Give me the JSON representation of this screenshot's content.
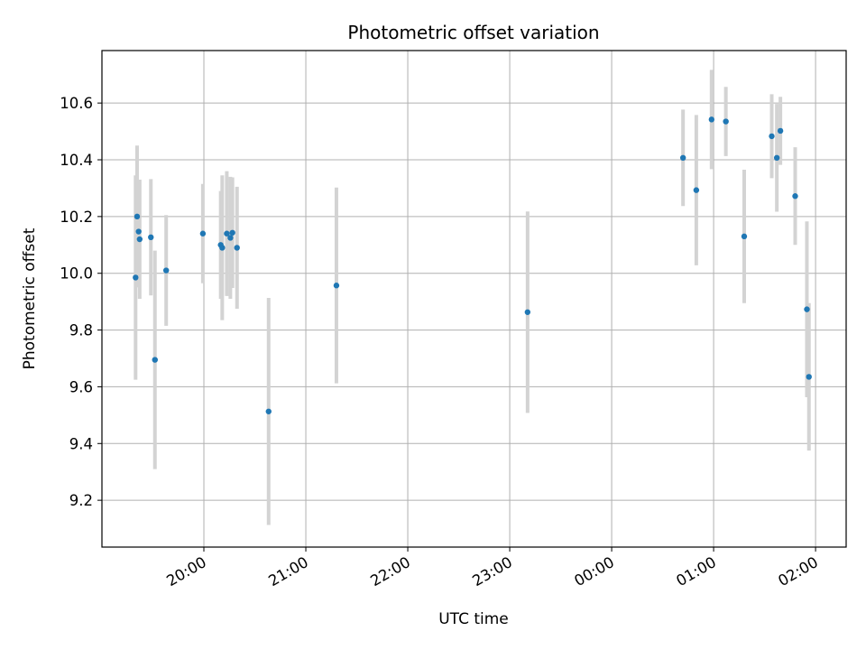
{
  "chart_data": {
    "type": "scatter",
    "title": "Photometric offset variation",
    "xlabel": "UTC time",
    "ylabel": "Photometric offset",
    "grid": true,
    "x_unit": "hours since 19:00 UTC (day 1)",
    "xlim": [
      0.0,
      7.3
    ],
    "ylim": [
      9.035,
      10.785
    ],
    "x_ticks": [
      {
        "value": 1.0,
        "label": "20:00"
      },
      {
        "value": 2.0,
        "label": "21:00"
      },
      {
        "value": 3.0,
        "label": "22:00"
      },
      {
        "value": 4.0,
        "label": "23:00"
      },
      {
        "value": 5.0,
        "label": "00:00"
      },
      {
        "value": 6.0,
        "label": "01:00"
      },
      {
        "value": 7.0,
        "label": "02:00"
      }
    ],
    "y_ticks": [
      {
        "value": 9.2,
        "label": "9.2"
      },
      {
        "value": 9.4,
        "label": "9.4"
      },
      {
        "value": 9.6,
        "label": "9.6"
      },
      {
        "value": 9.8,
        "label": "9.8"
      },
      {
        "value": 10.0,
        "label": "10.0"
      },
      {
        "value": 10.2,
        "label": "10.2"
      },
      {
        "value": 10.4,
        "label": "10.4"
      },
      {
        "value": 10.6,
        "label": "10.6"
      }
    ],
    "marker_color": "#1f77b4",
    "errorbar_color": "#d3d3d3",
    "points": [
      {
        "x": 0.33,
        "y": 9.985,
        "err": 0.36
      },
      {
        "x": 0.345,
        "y": 10.2,
        "err": 0.25
      },
      {
        "x": 0.36,
        "y": 10.147,
        "err": 0.18
      },
      {
        "x": 0.37,
        "y": 10.12,
        "err": 0.21
      },
      {
        "x": 0.48,
        "y": 10.127,
        "err": 0.205
      },
      {
        "x": 0.52,
        "y": 9.695,
        "err": 0.385
      },
      {
        "x": 0.63,
        "y": 10.01,
        "err": 0.195
      },
      {
        "x": 0.99,
        "y": 10.14,
        "err": 0.175
      },
      {
        "x": 1.165,
        "y": 10.1,
        "err": 0.19
      },
      {
        "x": 1.18,
        "y": 10.09,
        "err": 0.255
      },
      {
        "x": 1.225,
        "y": 10.14,
        "err": 0.22
      },
      {
        "x": 1.26,
        "y": 10.125,
        "err": 0.215
      },
      {
        "x": 1.28,
        "y": 10.143,
        "err": 0.195
      },
      {
        "x": 1.325,
        "y": 10.09,
        "err": 0.215
      },
      {
        "x": 1.635,
        "y": 9.513,
        "err": 0.4
      },
      {
        "x": 2.3,
        "y": 9.957,
        "err": 0.345
      },
      {
        "x": 4.175,
        "y": 9.863,
        "err": 0.355
      },
      {
        "x": 5.7,
        "y": 10.407,
        "err": 0.17
      },
      {
        "x": 5.83,
        "y": 10.293,
        "err": 0.265
      },
      {
        "x": 5.98,
        "y": 10.542,
        "err": 0.175
      },
      {
        "x": 6.12,
        "y": 10.535,
        "err": 0.122
      },
      {
        "x": 6.3,
        "y": 10.13,
        "err": 0.235
      },
      {
        "x": 6.57,
        "y": 10.483,
        "err": 0.148
      },
      {
        "x": 6.62,
        "y": 10.407,
        "err": 0.19
      },
      {
        "x": 6.655,
        "y": 10.502,
        "err": 0.12
      },
      {
        "x": 6.8,
        "y": 10.272,
        "err": 0.172
      },
      {
        "x": 6.915,
        "y": 9.873,
        "err": 0.31
      },
      {
        "x": 6.935,
        "y": 9.635,
        "err": 0.26
      }
    ]
  }
}
